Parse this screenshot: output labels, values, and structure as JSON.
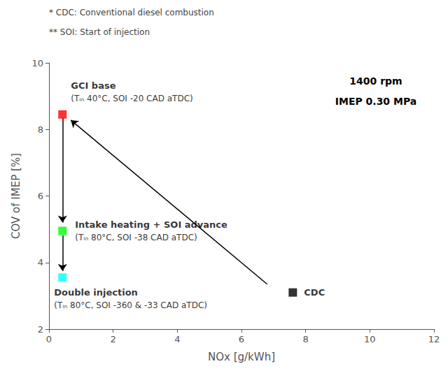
{
  "chart_data": {
    "type": "scatter",
    "xlabel": "NOx [g/kWh]",
    "ylabel": "COV of IMEP [%]",
    "xlim": [
      0,
      12
    ],
    "ylim": [
      2,
      10
    ],
    "xticks": [
      0,
      2,
      4,
      6,
      8,
      10,
      12
    ],
    "yticks": [
      2,
      4,
      6,
      8,
      10
    ],
    "grid": false,
    "marker": "square",
    "points": [
      {
        "x": 0.42,
        "y": 8.45,
        "color": "#FF0000",
        "label": "GCI base",
        "note": "(Tᵢₙ 40°C, SOI -20 CAD aTDC)"
      },
      {
        "x": 0.42,
        "y": 4.95,
        "color": "#00FF00",
        "label": "Intake heating + SOI advance",
        "note": "(Tᵢₙ 80°C, SOI -38 CAD aTDC)"
      },
      {
        "x": 0.42,
        "y": 3.55,
        "color": "#00FFFF",
        "label": "Double injection",
        "note": "(Tᵢₙ 80°C, SOI -360 & -33 CAD aTDC)"
      },
      {
        "x": 7.6,
        "y": 3.1,
        "color": "#000000",
        "label": "CDC"
      }
    ],
    "arrows": {
      "color": "#000000",
      "segments": [
        {
          "x_start": 0.42,
          "y_start": 8.35,
          "x_end": 0.42,
          "y_end": 5.2
        },
        {
          "x_start": 0.42,
          "y_start": 4.82,
          "x_end": 0.42,
          "y_end": 3.75
        },
        {
          "x_start": 6.8,
          "y_start": 3.35,
          "x_end": 0.68,
          "y_end": 8.28
        }
      ]
    },
    "annotations": [
      "1400 rpm",
      "IMEP 0.30 MPa"
    ],
    "footnotes": {
      "color": "#444444",
      "texts": [
        "* CDC: Conventional diesel combustion",
        "** SOI: Start of injection"
      ]
    }
  }
}
